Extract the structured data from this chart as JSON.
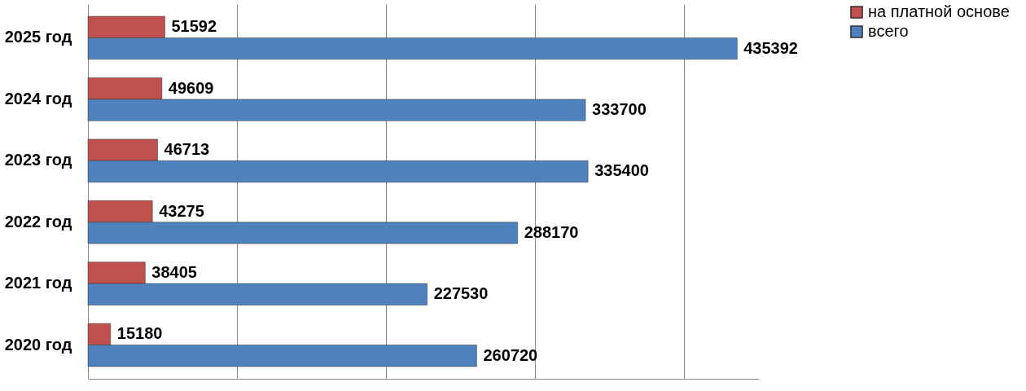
{
  "chart_data": {
    "type": "bar",
    "orientation": "horizontal",
    "categories": [
      "2025 год",
      "2024 год",
      "2023 год",
      "2022 год",
      "2021 год",
      "2020 год"
    ],
    "series": [
      {
        "name": "на платной основе",
        "color": "#c0504d",
        "values": [
          51592,
          49609,
          46713,
          43275,
          38405,
          15180
        ]
      },
      {
        "name": "всего",
        "color": "#4f81bd",
        "values": [
          435392,
          333700,
          335400,
          288170,
          227530,
          260720
        ]
      }
    ],
    "data_labels": true,
    "grid": "x",
    "legend": "right",
    "tick_labels": "y"
  }
}
